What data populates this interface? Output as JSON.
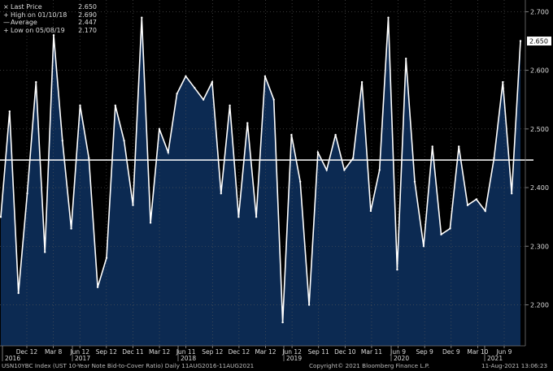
{
  "legend": [
    {
      "label": "Last Price",
      "value": "2.650"
    },
    {
      "label": "High on 01/10/18",
      "value": "2.690"
    },
    {
      "label": "Average",
      "value": "2.447"
    },
    {
      "label": "Low on 05/08/19",
      "value": "2.170"
    }
  ],
  "last_price_tag": "2.650",
  "footer": {
    "left": "USN10YBC Index (UST 10-Year Note Bid-to-Cover Ratio) Daily 11AUG2016-11AUG2021",
    "center": "Copyright© 2021 Bloomberg Finance L.P.",
    "right": "11-Aug-2021 13:06:23"
  },
  "colors": {
    "background": "#000000",
    "area_fill": "#0c2a52",
    "line": "#ffffff",
    "average_line": "#ffffff"
  },
  "chart_data": {
    "type": "area",
    "ylim": [
      2.13,
      2.72
    ],
    "yticks": [
      "2.200",
      "2.300",
      "2.400",
      "2.500",
      "2.600",
      "2.700"
    ],
    "average": 2.447,
    "month_ticks": [
      "Dec 12",
      "Mar 8",
      "Jun 12",
      "Sep 12",
      "Dec 11",
      "Mar 12",
      "Jun 11",
      "Sep 12",
      "Dec 12",
      "Mar 12",
      "Jun 12",
      "Sep 11",
      "Dec 10",
      "Mar 11",
      "Jun 9",
      "Sep 9",
      "Dec 9",
      "Mar 10",
      "Jun 9"
    ],
    "year_labels": [
      "2016",
      "2017",
      "2018",
      "2019",
      "2020",
      "2021"
    ],
    "values": [
      2.35,
      2.53,
      2.22,
      2.39,
      2.58,
      2.29,
      2.66,
      2.48,
      2.33,
      2.54,
      2.45,
      2.23,
      2.28,
      2.54,
      2.48,
      2.37,
      2.69,
      2.34,
      2.5,
      2.46,
      2.56,
      2.59,
      2.57,
      2.55,
      2.58,
      2.39,
      2.54,
      2.35,
      2.51,
      2.35,
      2.59,
      2.55,
      2.17,
      2.49,
      2.41,
      2.2,
      2.46,
      2.43,
      2.49,
      2.43,
      2.45,
      2.58,
      2.36,
      2.43,
      2.69,
      2.26,
      2.62,
      2.41,
      2.3,
      2.47,
      2.32,
      2.33,
      2.47,
      2.37,
      2.38,
      2.36,
      2.45,
      2.58,
      2.39,
      2.65
    ]
  }
}
